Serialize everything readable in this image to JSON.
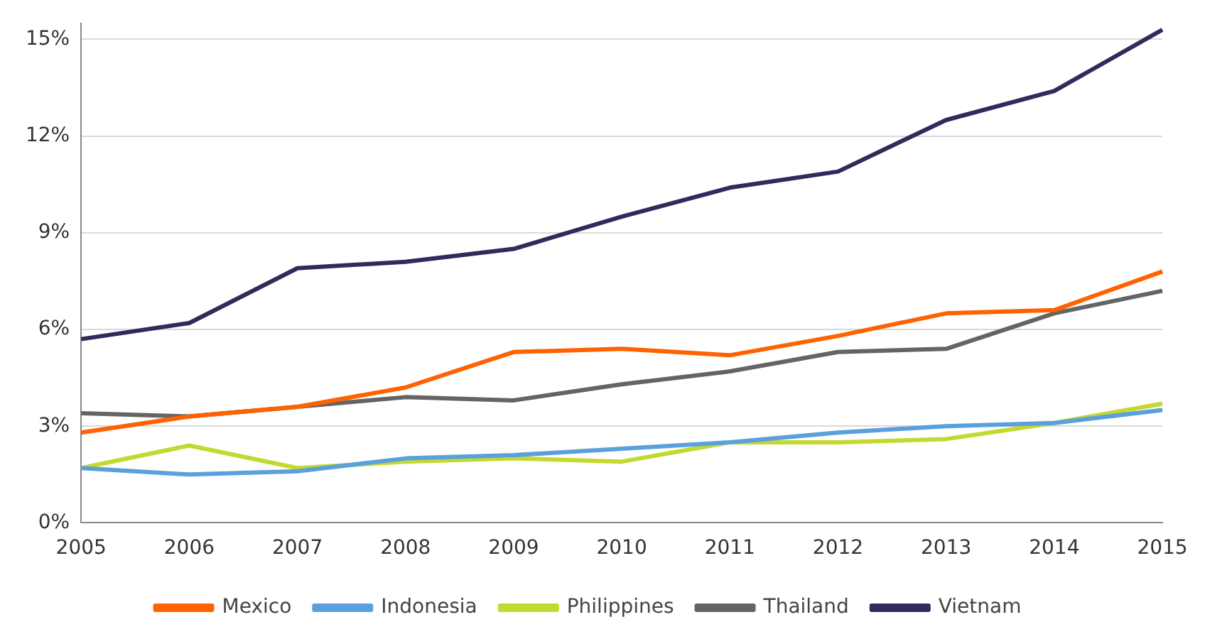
{
  "chart_data": {
    "type": "line",
    "categories": [
      "2005",
      "2006",
      "2007",
      "2008",
      "2009",
      "2010",
      "2011",
      "2012",
      "2013",
      "2014",
      "2015"
    ],
    "series": [
      {
        "name": "Mexico",
        "color": "#ff6200",
        "values": [
          2.8,
          3.3,
          3.6,
          4.2,
          5.3,
          5.4,
          5.2,
          5.8,
          6.5,
          6.6,
          7.8
        ]
      },
      {
        "name": "Indonesia",
        "color": "#5aa0dc",
        "values": [
          1.7,
          1.5,
          1.6,
          2.0,
          2.1,
          2.3,
          2.5,
          2.8,
          3.0,
          3.1,
          3.5
        ]
      },
      {
        "name": "Philippines",
        "color": "#c4d930",
        "values": [
          1.7,
          2.4,
          1.7,
          1.9,
          2.0,
          1.9,
          2.5,
          2.5,
          2.6,
          3.1,
          3.7
        ]
      },
      {
        "name": "Thailand",
        "color": "#646464",
        "values": [
          3.4,
          3.3,
          3.6,
          3.9,
          3.8,
          4.3,
          4.7,
          5.3,
          5.4,
          6.5,
          7.2
        ]
      },
      {
        "name": "Vietnam",
        "color": "#2e2c5c",
        "values": [
          5.7,
          6.2,
          7.9,
          8.1,
          8.5,
          9.5,
          10.4,
          10.9,
          12.5,
          13.4,
          15.3
        ]
      }
    ],
    "ylim": [
      0,
      15.5
    ],
    "yticks": [
      {
        "value": 0,
        "label": "0%"
      },
      {
        "value": 3,
        "label": "3%"
      },
      {
        "value": 6,
        "label": "6%"
      },
      {
        "value": 9,
        "label": "9%"
      },
      {
        "value": 12,
        "label": "12%"
      },
      {
        "value": 15,
        "label": "15%"
      }
    ],
    "grid": "y",
    "legend": "bottom",
    "marker": "none",
    "line_style": "solid"
  }
}
